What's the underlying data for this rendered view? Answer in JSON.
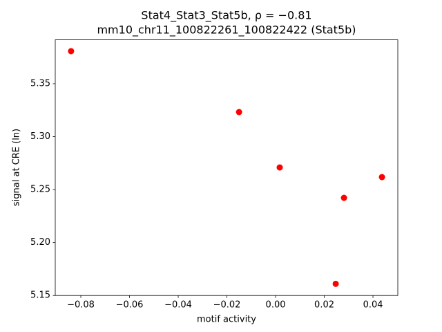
{
  "chart_data": {
    "type": "scatter",
    "title": [
      "Stat4_Stat3_Stat5b, ρ = −0.81",
      "mm10_chr11_100822261_100822422 (Stat5b)"
    ],
    "x_label": "motif activity",
    "y_label": "signal at CRE (ln)",
    "color": "#ff0000",
    "x": [
      -0.084,
      -0.015,
      0.0017,
      0.0437,
      0.0281,
      0.0247
    ],
    "values": [
      5.3807,
      5.3232,
      5.2709,
      5.2618,
      5.2422,
      5.161
    ],
    "xlim": [
      -0.0905,
      0.0502
    ],
    "ylim": [
      5.15,
      5.3914
    ],
    "xticks": [
      {
        "value": -0.08,
        "label": "−0.08"
      },
      {
        "value": -0.06,
        "label": "−0.06"
      },
      {
        "value": -0.04,
        "label": "−0.04"
      },
      {
        "value": -0.02,
        "label": "−0.02"
      },
      {
        "value": 0,
        "label": "0.00"
      },
      {
        "value": 0.02,
        "label": "0.02"
      },
      {
        "value": 0.04,
        "label": "0.04"
      }
    ],
    "yticks": [
      5.15,
      {
        "value": 5.2,
        "label": "5.20"
      },
      5.25,
      {
        "value": 5.3,
        "label": "5.30"
      },
      5.35
    ],
    "grid": false
  }
}
